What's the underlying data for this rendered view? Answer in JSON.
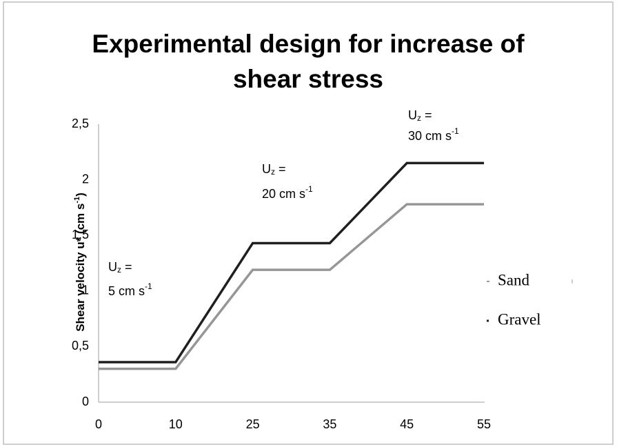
{
  "chart_data": {
    "type": "line",
    "title": [
      "Experimental design for increase of",
      "shear stress"
    ],
    "ylabel": [
      "Shear velocity u* (cm s",
      "-1",
      ")"
    ],
    "categories": [
      "0",
      "10",
      "25",
      "35",
      "45",
      "55"
    ],
    "series": [
      {
        "name": "Sand",
        "color": "#969696",
        "values": [
          0.3,
          0.3,
          1.19,
          1.19,
          1.78,
          1.78
        ]
      },
      {
        "name": "Gravel",
        "color": "#1f1f1f",
        "values": [
          0.36,
          0.36,
          1.43,
          1.43,
          2.15,
          2.15
        ]
      }
    ],
    "ylim": [
      0,
      2.5
    ],
    "yticks": [
      0,
      {
        "value": 0.5,
        "label": "0,5"
      },
      1,
      {
        "value": 1.5,
        "label": "1,5"
      },
      2,
      {
        "value": 2.5,
        "label": "2,5"
      }
    ],
    "grid": false,
    "legend": "right",
    "annotations": [
      {
        "line1": [
          "U",
          "z",
          " ="
        ],
        "line2": [
          "5 cm s",
          "-1"
        ]
      },
      {
        "line1": [
          "U",
          "z",
          " ="
        ],
        "line2": [
          "20 cm s",
          "-1"
        ]
      },
      {
        "line1": [
          "U",
          "z",
          " ="
        ],
        "line2": [
          "30 cm s",
          "-1"
        ]
      }
    ]
  }
}
